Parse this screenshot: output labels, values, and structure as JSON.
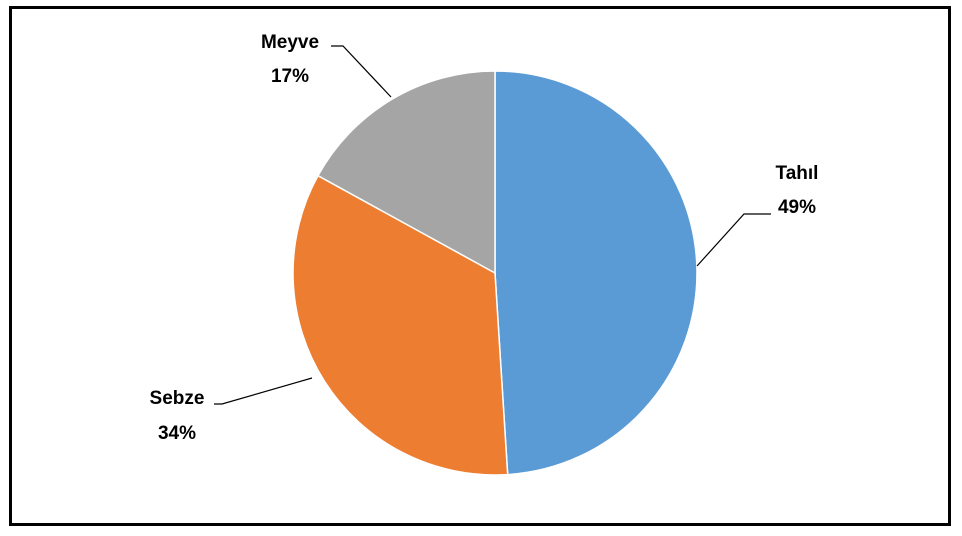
{
  "chart_data": {
    "type": "pie",
    "title": "",
    "categories": [
      "Tahıl",
      "Sebze",
      "Meyve"
    ],
    "values": [
      49,
      34,
      17
    ],
    "colors": [
      "#5b9bd5",
      "#ed7d31",
      "#a5a5a5"
    ],
    "data_labels": [
      {
        "name": "Tahıl",
        "value": "49%"
      },
      {
        "name": "Sebze",
        "value": "34%"
      },
      {
        "name": "Meyve",
        "value": "17%"
      }
    ],
    "legend": "none",
    "start_angle": "12 o'clock",
    "direction": "clockwise"
  }
}
